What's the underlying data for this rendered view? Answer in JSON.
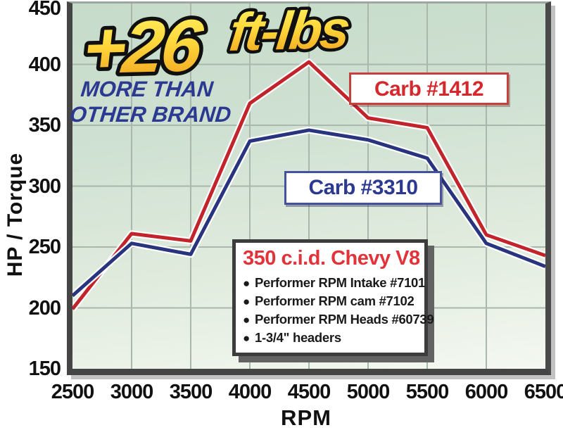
{
  "promo": {
    "headline_value": "+26",
    "headline_unit": "ft-lbs",
    "sub_line1": "MORE THAN",
    "sub_line2": "OTHER BRAND",
    "gold_top": "#fff263",
    "gold_mid": "#ffd83c",
    "gold_bottom": "#ef9c1c",
    "navy": "#2b3990"
  },
  "info_box": {
    "title": "350 c.i.d. Chevy V8",
    "items": [
      "Performer RPM Intake #7101",
      "Performer RPM cam #7102",
      "Performer RPM Heads #60739",
      "1-3/4\" headers"
    ]
  },
  "chart_data": {
    "type": "line",
    "x": [
      2500,
      3000,
      3500,
      4000,
      4500,
      5000,
      5500,
      6000,
      6500
    ],
    "series": [
      {
        "name": "Carb #1412",
        "color": "#c2242c",
        "values": [
          199,
          261,
          255,
          368,
          402,
          356,
          348,
          260,
          243
        ]
      },
      {
        "name": "Carb #3310",
        "color": "#28347e",
        "values": [
          210,
          253,
          244,
          337,
          346,
          338,
          323,
          253,
          234
        ]
      }
    ],
    "xlabel": "RPM",
    "ylabel": "HP / Torque",
    "xlim": [
      2500,
      6500
    ],
    "ylim": [
      150,
      450
    ],
    "xticks": [
      2500,
      3000,
      3500,
      4000,
      4500,
      5000,
      5500,
      6000,
      6500
    ],
    "yticks": [
      150,
      200,
      250,
      300,
      350,
      400,
      450
    ],
    "grid": true,
    "gridline_color": "#a9b7ad",
    "legend_position": "inline-boxes"
  }
}
